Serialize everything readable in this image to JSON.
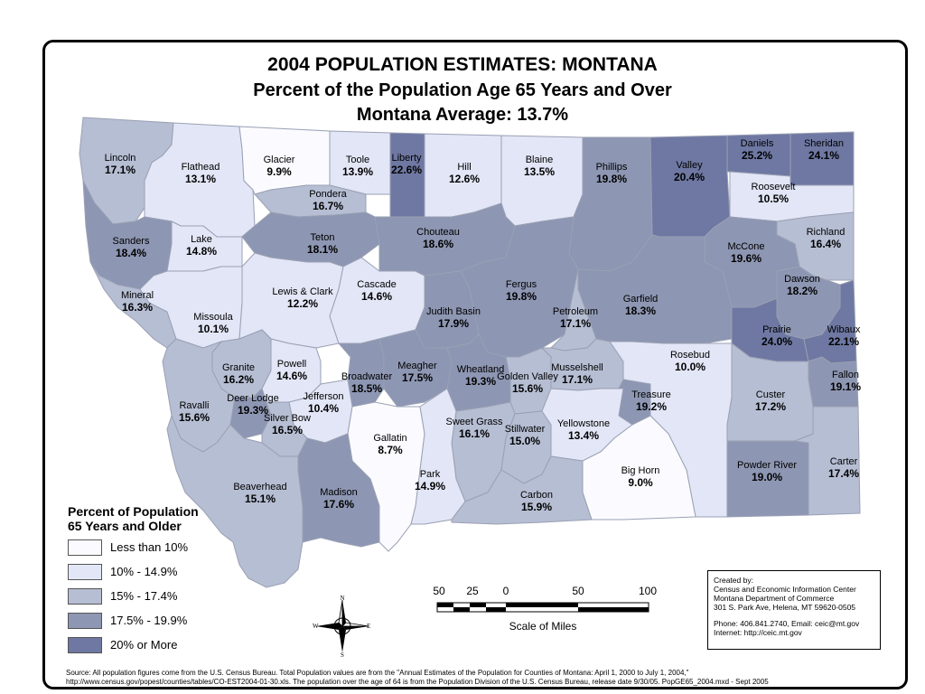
{
  "title": {
    "line1": "2004 POPULATION ESTIMATES: MONTANA",
    "line2": "Percent of the Population Age 65 Years and Over",
    "line3": "Montana Average: 13.7%"
  },
  "colors": {
    "lt10": "#fbfbff",
    "p10_15": "#e2e6f6",
    "p15_17": "#b6bed3",
    "p17_20": "#8d96b2",
    "p20": "#6e78a2"
  },
  "counties": [
    {
      "name": "Lincoln",
      "value": "17.1%",
      "cls": "p15_17"
    },
    {
      "name": "Flathead",
      "value": "13.1%",
      "cls": "p10_15"
    },
    {
      "name": "Glacier",
      "value": "9.9%",
      "cls": "lt10"
    },
    {
      "name": "Toole",
      "value": "13.9%",
      "cls": "p10_15"
    },
    {
      "name": "Liberty",
      "value": "22.6%",
      "cls": "p20"
    },
    {
      "name": "Hill",
      "value": "12.6%",
      "cls": "p10_15"
    },
    {
      "name": "Blaine",
      "value": "13.5%",
      "cls": "p10_15"
    },
    {
      "name": "Phillips",
      "value": "19.8%",
      "cls": "p17_20"
    },
    {
      "name": "Valley",
      "value": "20.4%",
      "cls": "p20"
    },
    {
      "name": "Daniels",
      "value": "25.2%",
      "cls": "p20"
    },
    {
      "name": "Sheridan",
      "value": "24.1%",
      "cls": "p20"
    },
    {
      "name": "Roosevelt",
      "value": "10.5%",
      "cls": "p10_15"
    },
    {
      "name": "Pondera",
      "value": "16.7%",
      "cls": "p15_17"
    },
    {
      "name": "Sanders",
      "value": "18.4%",
      "cls": "p17_20"
    },
    {
      "name": "Lake",
      "value": "14.8%",
      "cls": "p10_15"
    },
    {
      "name": "Teton",
      "value": "18.1%",
      "cls": "p17_20"
    },
    {
      "name": "Chouteau",
      "value": "18.6%",
      "cls": "p17_20"
    },
    {
      "name": "Richland",
      "value": "16.4%",
      "cls": "p15_17"
    },
    {
      "name": "McCone",
      "value": "19.6%",
      "cls": "p17_20"
    },
    {
      "name": "Mineral",
      "value": "16.3%",
      "cls": "p15_17"
    },
    {
      "name": "Missoula",
      "value": "10.1%",
      "cls": "p10_15"
    },
    {
      "name": "Lewis & Clark",
      "value": "12.2%",
      "cls": "p10_15"
    },
    {
      "name": "Cascade",
      "value": "14.6%",
      "cls": "p10_15"
    },
    {
      "name": "Fergus",
      "value": "19.8%",
      "cls": "p17_20"
    },
    {
      "name": "Garfield",
      "value": "18.3%",
      "cls": "p17_20"
    },
    {
      "name": "Dawson",
      "value": "18.2%",
      "cls": "p17_20"
    },
    {
      "name": "Judith Basin",
      "value": "17.9%",
      "cls": "p17_20"
    },
    {
      "name": "Petroleum",
      "value": "17.1%",
      "cls": "p15_17"
    },
    {
      "name": "Prairie",
      "value": "24.0%",
      "cls": "p20"
    },
    {
      "name": "Wibaux",
      "value": "22.1%",
      "cls": "p20"
    },
    {
      "name": "Granite",
      "value": "16.2%",
      "cls": "p15_17"
    },
    {
      "name": "Powell",
      "value": "14.6%",
      "cls": "p10_15"
    },
    {
      "name": "Broadwater",
      "value": "18.5%",
      "cls": "p17_20"
    },
    {
      "name": "Meagher",
      "value": "17.5%",
      "cls": "p17_20"
    },
    {
      "name": "Wheatland",
      "value": "19.3%",
      "cls": "p17_20"
    },
    {
      "name": "Golden Valley",
      "value": "15.6%",
      "cls": "p15_17"
    },
    {
      "name": "Musselshell",
      "value": "17.1%",
      "cls": "p15_17"
    },
    {
      "name": "Rosebud",
      "value": "10.0%",
      "cls": "p10_15"
    },
    {
      "name": "Fallon",
      "value": "19.1%",
      "cls": "p17_20"
    },
    {
      "name": "Ravalli",
      "value": "15.6%",
      "cls": "p15_17"
    },
    {
      "name": "Deer Lodge",
      "value": "19.3%",
      "cls": "p17_20"
    },
    {
      "name": "Jefferson",
      "value": "10.4%",
      "cls": "p10_15"
    },
    {
      "name": "Silver Bow",
      "value": "16.5%",
      "cls": "p15_17"
    },
    {
      "name": "Treasure",
      "value": "19.2%",
      "cls": "p17_20"
    },
    {
      "name": "Custer",
      "value": "17.2%",
      "cls": "p15_17"
    },
    {
      "name": "Gallatin",
      "value": "8.7%",
      "cls": "lt10"
    },
    {
      "name": "Sweet Grass",
      "value": "16.1%",
      "cls": "p15_17"
    },
    {
      "name": "Stillwater",
      "value": "15.0%",
      "cls": "p15_17"
    },
    {
      "name": "Yellowstone",
      "value": "13.4%",
      "cls": "p10_15"
    },
    {
      "name": "Park",
      "value": "14.9%",
      "cls": "p10_15"
    },
    {
      "name": "Big Horn",
      "value": "9.0%",
      "cls": "lt10"
    },
    {
      "name": "Powder River",
      "value": "19.0%",
      "cls": "p17_20"
    },
    {
      "name": "Carter",
      "value": "17.4%",
      "cls": "p15_17"
    },
    {
      "name": "Beaverhead",
      "value": "15.1%",
      "cls": "p15_17"
    },
    {
      "name": "Madison",
      "value": "17.6%",
      "cls": "p17_20"
    },
    {
      "name": "Carbon",
      "value": "15.9%",
      "cls": "p15_17"
    }
  ],
  "legend": {
    "title1": "Percent of Population",
    "title2": "65 Years and Older",
    "items": [
      "Less than 10%",
      "10% - 14.9%",
      "15% - 17.4%",
      "17.5% - 19.9%",
      "20% or More"
    ]
  },
  "scale": {
    "ticks": [
      "50",
      "25",
      "0",
      "50",
      "100"
    ],
    "label": "Scale of Miles"
  },
  "compass": {
    "n": "N",
    "s": "S",
    "e": "E",
    "w": "W"
  },
  "credits": {
    "l1": "Created by:",
    "l2": "Census and Economic Information Center",
    "l3": "Montana Department of Commerce",
    "l4": "301 S. Park Ave, Helena, MT 59620-0505",
    "l5": "Phone: 406.841.2740, Email: ceic@mt.gov",
    "l6": "Internet: http://ceic.mt.gov"
  },
  "source": {
    "l1": "Source: All population figures come from the U.S. Census Bureau.  Total Population values are from the \"Annual Estimates of the Population for Counties of Montana: April 1, 2000 to July 1, 2004,\"",
    "l2": "http://www.census.gov/popest/counties/tables/CO-EST2004-01-30.xls.  The population over the age of 64 is from the Population Division of the U.S. Census Bureau, release date 9/30/05.  PopGE65_2004.mxd - Sept 2005"
  }
}
